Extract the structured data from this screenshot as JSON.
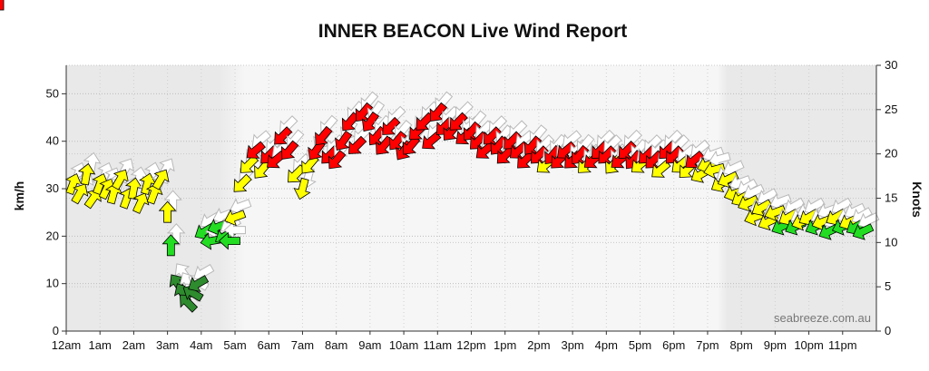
{
  "chart_data": {
    "type": "scatter",
    "title": "INNER BEACON Live Wind Report",
    "ylabel": "km/h",
    "y2label": "Knots",
    "ylim": [
      0,
      56
    ],
    "y2lim": [
      0,
      30
    ],
    "yticks": [
      0,
      10,
      20,
      30,
      40,
      50
    ],
    "y2ticks": [
      0,
      5,
      10,
      15,
      20,
      25,
      30
    ],
    "xlim": [
      0,
      24
    ],
    "categories": [
      "12am",
      "1am",
      "2am",
      "3am",
      "4am",
      "5am",
      "6am",
      "7am",
      "8am",
      "9am",
      "10am",
      "11am",
      "12pm",
      "1pm",
      "2pm",
      "3pm",
      "4pm",
      "5pm",
      "6pm",
      "7pm",
      "8pm",
      "9pm",
      "10pm",
      "11pm"
    ],
    "grid": true,
    "night_shading": [
      [
        0,
        5.3
      ],
      [
        19.3,
        24
      ]
    ],
    "credit": "seabreeze.com.au",
    "color_scale": [
      {
        "max_kmh": 10,
        "color": "#2e8b2e"
      },
      {
        "max_kmh": 22,
        "color": "#22dd22"
      },
      {
        "max_kmh": 35,
        "color": "#ffff00"
      },
      {
        "max_kmh": 60,
        "color": "#ff0000"
      }
    ],
    "series": [
      {
        "name": "wind",
        "x": [
          0.2,
          0.4,
          0.6,
          0.8,
          1.0,
          1.2,
          1.4,
          1.6,
          1.8,
          2.0,
          2.2,
          2.4,
          2.6,
          2.8,
          3.0,
          3.1,
          3.3,
          3.45,
          3.6,
          3.75,
          3.9,
          4.1,
          4.3,
          4.5,
          4.7,
          4.85,
          5.0,
          5.2,
          5.4,
          5.6,
          5.8,
          6.0,
          6.2,
          6.4,
          6.6,
          6.8,
          7.0,
          7.2,
          7.4,
          7.6,
          7.8,
          8.0,
          8.2,
          8.4,
          8.6,
          8.8,
          9.0,
          9.2,
          9.4,
          9.6,
          9.8,
          10.0,
          10.2,
          10.4,
          10.6,
          10.8,
          11.0,
          11.2,
          11.4,
          11.6,
          11.8,
          12.0,
          12.2,
          12.4,
          12.6,
          12.8,
          13.0,
          13.2,
          13.4,
          13.6,
          13.8,
          14.0,
          14.2,
          14.4,
          14.6,
          14.8,
          15.0,
          15.2,
          15.4,
          15.6,
          15.8,
          16.0,
          16.2,
          16.4,
          16.6,
          16.8,
          17.0,
          17.2,
          17.4,
          17.6,
          17.8,
          18.0,
          18.2,
          18.4,
          18.6,
          18.8,
          19.0,
          19.2,
          19.4,
          19.6,
          19.8,
          20.0,
          20.2,
          20.4,
          20.6,
          20.8,
          21.0,
          21.2,
          21.4,
          21.6,
          21.8,
          22.0,
          22.2,
          22.4,
          22.6,
          22.8,
          23.0,
          23.2,
          23.4,
          23.6,
          23.8
        ],
        "kmh": [
          31,
          29,
          33,
          28,
          31,
          30,
          29,
          32,
          28,
          30,
          27,
          31,
          29,
          32,
          25,
          18,
          10,
          8,
          6,
          8,
          10,
          21,
          19,
          22,
          20,
          19,
          24,
          31,
          35,
          38,
          34,
          37,
          36,
          41,
          38,
          33,
          30,
          35,
          38,
          41,
          37,
          36,
          40,
          44,
          39,
          46,
          44,
          41,
          39,
          43,
          40,
          38,
          39,
          42,
          44,
          40,
          46,
          43,
          42,
          44,
          41,
          42,
          40,
          38,
          41,
          39,
          37,
          40,
          38,
          36,
          39,
          37,
          35,
          37,
          36,
          38,
          36,
          37,
          35,
          36,
          38,
          37,
          35,
          36,
          38,
          36,
          35,
          37,
          36,
          34,
          38,
          37,
          35,
          34,
          36,
          33,
          35,
          34,
          31,
          32,
          29,
          28,
          27,
          24,
          26,
          23,
          25,
          22,
          24,
          22,
          23,
          24,
          22,
          23,
          21,
          24,
          22,
          23,
          22,
          21
        ],
        "dir": [
          200,
          210,
          190,
          215,
          200,
          205,
          195,
          210,
          200,
          190,
          205,
          195,
          200,
          210,
          180,
          180,
          145,
          150,
          135,
          120,
          60,
          60,
          80,
          70,
          60,
          90,
          70,
          45,
          45,
          50,
          40,
          45,
          50,
          45,
          40,
          45,
          15,
          40,
          35,
          40,
          45,
          40,
          35,
          40,
          45,
          40,
          35,
          40,
          40,
          45,
          40,
          35,
          40,
          45,
          45,
          50,
          40,
          45,
          40,
          45,
          50,
          40,
          45,
          50,
          45,
          40,
          45,
          45,
          50,
          45,
          40,
          45,
          50,
          40,
          45,
          50,
          45,
          40,
          45,
          50,
          45,
          45,
          40,
          50,
          45,
          40,
          50,
          45,
          45,
          50,
          45,
          45,
          50,
          45,
          50,
          60,
          70,
          75,
          60,
          65,
          70,
          60,
          65,
          70,
          60,
          65,
          70,
          65,
          60,
          65,
          70,
          60,
          65,
          70,
          65,
          60,
          70,
          65,
          60,
          65
        ]
      }
    ]
  }
}
